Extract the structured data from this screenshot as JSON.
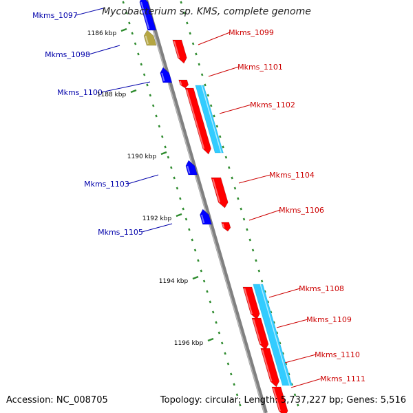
{
  "title": "Mycobacterium sp. KMS, complete genome",
  "colors": {
    "forward": "#ff0000",
    "reverse": "#0000ff",
    "forward_label": "#cc0000",
    "reverse_label": "#0000aa",
    "ticks": "#2e8b2e",
    "backbone": "#808080",
    "pseudo": "#b5a642",
    "cyan": "#33ccff"
  },
  "footer": {
    "accession": "Accession: NC_008705",
    "topology": "Topology: circular; Length: 5,737,227 bp; Genes: 5,516"
  },
  "kbp_labels": [
    "1186 kbp",
    "1188 kbp",
    "1190 kbp",
    "1192 kbp",
    "1194 kbp",
    "1196 kbp"
  ],
  "genes": [
    {
      "name": "Mkms_1097",
      "strand": "reverse"
    },
    {
      "name": "Mkms_1098",
      "strand": "reverse"
    },
    {
      "name": "Mkms_1099",
      "strand": "forward"
    },
    {
      "name": "Mkms_1100",
      "strand": "reverse"
    },
    {
      "name": "Mkms_1101",
      "strand": "forward"
    },
    {
      "name": "Mkms_1102",
      "strand": "forward"
    },
    {
      "name": "Mkms_1103",
      "strand": "reverse"
    },
    {
      "name": "Mkms_1104",
      "strand": "forward"
    },
    {
      "name": "Mkms_1105",
      "strand": "reverse"
    },
    {
      "name": "Mkms_1106",
      "strand": "forward"
    },
    {
      "name": "Mkms_1108",
      "strand": "forward"
    },
    {
      "name": "Mkms_1109",
      "strand": "forward"
    },
    {
      "name": "Mkms_1110",
      "strand": "forward"
    },
    {
      "name": "Mkms_1111",
      "strand": "forward"
    }
  ]
}
